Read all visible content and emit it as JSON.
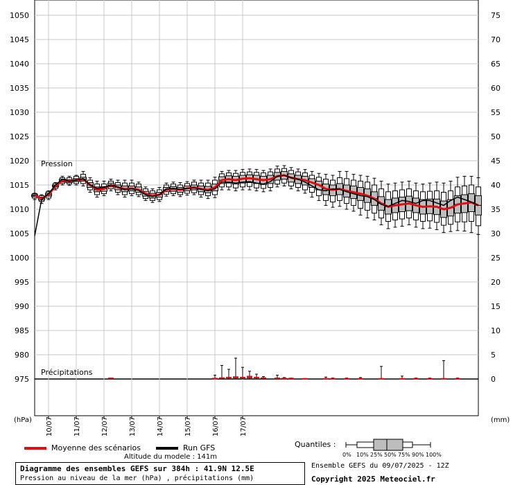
{
  "chart_data": {
    "type": "boxplot-line",
    "y_left": {
      "label": "(hPa)",
      "ticks": [
        975,
        980,
        985,
        990,
        995,
        1000,
        1005,
        1010,
        1015,
        1020,
        1025,
        1030,
        1035,
        1040,
        1045,
        1050
      ],
      "range": [
        968,
        1053
      ]
    },
    "y_right": {
      "label": "(mm)",
      "ticks": [
        0,
        5,
        10,
        15,
        20,
        25,
        30,
        35,
        40,
        45,
        50,
        55,
        60,
        65,
        70,
        75
      ]
    },
    "x": {
      "ticks": [
        "10/07",
        "11/07",
        "12/07",
        "13/07",
        "14/07",
        "15/07",
        "16/07",
        "17/07"
      ],
      "range_hours": [
        0,
        384
      ]
    },
    "panel_labels": {
      "pressure": "Pression",
      "precip": "Précipitations"
    },
    "series": [
      {
        "name": "Moyenne des scénarios",
        "color": "#e01010"
      },
      {
        "name": "Run GFS",
        "color": "#000000"
      }
    ],
    "pressure_boxes": [
      {
        "h": 0,
        "mean": 1012.8,
        "med": 1012.8,
        "q25": 1012.6,
        "q75": 1013.0,
        "p10": 1012.3,
        "p90": 1013.2,
        "min": 1012.0,
        "max": 1013.3
      },
      {
        "h": 6,
        "mean": 1012.2,
        "med": 1012.2,
        "q25": 1011.9,
        "q75": 1012.5,
        "p10": 1011.6,
        "p90": 1012.8,
        "min": 1011.2,
        "max": 1013.0
      },
      {
        "h": 12,
        "mean": 1013.0,
        "med": 1013.0,
        "q25": 1012.7,
        "q75": 1013.3,
        "p10": 1012.3,
        "p90": 1013.6,
        "min": 1012.0,
        "max": 1013.8
      },
      {
        "h": 18,
        "mean": 1014.8,
        "med": 1014.8,
        "q25": 1014.6,
        "q75": 1015.0,
        "p10": 1014.3,
        "p90": 1015.3,
        "min": 1014.0,
        "max": 1015.5
      },
      {
        "h": 24,
        "mean": 1015.9,
        "med": 1015.9,
        "q25": 1015.6,
        "q75": 1016.2,
        "p10": 1015.3,
        "p90": 1016.5,
        "min": 1015.0,
        "max": 1016.8
      },
      {
        "h": 30,
        "mean": 1015.8,
        "med": 1015.8,
        "q25": 1015.5,
        "q75": 1016.1,
        "p10": 1015.2,
        "p90": 1016.5,
        "min": 1014.9,
        "max": 1016.8
      },
      {
        "h": 36,
        "mean": 1016.0,
        "med": 1016.0,
        "q25": 1015.7,
        "q75": 1016.3,
        "p10": 1015.3,
        "p90": 1016.8,
        "min": 1015.0,
        "max": 1017.0
      },
      {
        "h": 42,
        "mean": 1016.2,
        "med": 1016.2,
        "q25": 1015.8,
        "q75": 1016.6,
        "p10": 1015.3,
        "p90": 1017.2,
        "min": 1014.8,
        "max": 1017.8
      },
      {
        "h": 48,
        "mean": 1015.0,
        "med": 1015.0,
        "q25": 1014.5,
        "q75": 1015.5,
        "p10": 1014.0,
        "p90": 1016.0,
        "min": 1013.5,
        "max": 1016.5
      },
      {
        "h": 54,
        "mean": 1014.0,
        "med": 1014.0,
        "q25": 1013.6,
        "q75": 1014.6,
        "p10": 1013.0,
        "p90": 1015.2,
        "min": 1012.5,
        "max": 1015.8
      },
      {
        "h": 60,
        "mean": 1014.2,
        "med": 1014.2,
        "q25": 1013.7,
        "q75": 1014.7,
        "p10": 1013.2,
        "p90": 1015.2,
        "min": 1012.8,
        "max": 1015.8
      },
      {
        "h": 66,
        "mean": 1015.0,
        "med": 1015.0,
        "q25": 1014.6,
        "q75": 1015.4,
        "p10": 1014.2,
        "p90": 1015.8,
        "min": 1013.8,
        "max": 1016.2
      },
      {
        "h": 72,
        "mean": 1014.5,
        "med": 1014.5,
        "q25": 1014.0,
        "q75": 1015.0,
        "p10": 1013.5,
        "p90": 1015.5,
        "min": 1013.0,
        "max": 1016.0
      },
      {
        "h": 78,
        "mean": 1014.2,
        "med": 1014.2,
        "q25": 1013.6,
        "q75": 1014.8,
        "p10": 1013.0,
        "p90": 1015.4,
        "min": 1012.5,
        "max": 1016.0
      },
      {
        "h": 84,
        "mean": 1014.3,
        "med": 1014.3,
        "q25": 1013.8,
        "q75": 1014.8,
        "p10": 1013.2,
        "p90": 1015.4,
        "min": 1012.8,
        "max": 1016.0
      },
      {
        "h": 90,
        "mean": 1014.0,
        "med": 1014.0,
        "q25": 1013.5,
        "q75": 1014.6,
        "p10": 1013.0,
        "p90": 1015.2,
        "min": 1012.6,
        "max": 1015.6
      },
      {
        "h": 96,
        "mean": 1013.2,
        "med": 1013.2,
        "q25": 1012.7,
        "q75": 1013.7,
        "p10": 1012.2,
        "p90": 1014.2,
        "min": 1011.8,
        "max": 1014.6
      },
      {
        "h": 102,
        "mean": 1012.8,
        "med": 1012.8,
        "q25": 1012.3,
        "q75": 1013.3,
        "p10": 1011.8,
        "p90": 1013.8,
        "min": 1011.4,
        "max": 1014.2
      },
      {
        "h": 108,
        "mean": 1013.0,
        "med": 1013.0,
        "q25": 1012.5,
        "q75": 1013.5,
        "p10": 1012.0,
        "p90": 1014.0,
        "min": 1011.6,
        "max": 1014.5
      },
      {
        "h": 114,
        "mean": 1014.0,
        "med": 1014.0,
        "q25": 1013.6,
        "q75": 1014.5,
        "p10": 1013.1,
        "p90": 1015.0,
        "min": 1012.7,
        "max": 1015.4
      },
      {
        "h": 120,
        "mean": 1014.2,
        "med": 1014.2,
        "q25": 1013.7,
        "q75": 1014.7,
        "p10": 1013.2,
        "p90": 1015.2,
        "min": 1012.8,
        "max": 1015.6
      },
      {
        "h": 126,
        "mean": 1014.0,
        "med": 1014.0,
        "q25": 1013.5,
        "q75": 1014.5,
        "p10": 1013.0,
        "p90": 1015.0,
        "min": 1012.6,
        "max": 1015.5
      },
      {
        "h": 132,
        "mean": 1014.3,
        "med": 1014.3,
        "q25": 1013.8,
        "q75": 1014.8,
        "p10": 1013.3,
        "p90": 1015.3,
        "min": 1012.9,
        "max": 1015.7
      },
      {
        "h": 138,
        "mean": 1014.5,
        "med": 1014.5,
        "q25": 1014.0,
        "q75": 1015.0,
        "p10": 1013.4,
        "p90": 1015.6,
        "min": 1013.0,
        "max": 1016.0
      },
      {
        "h": 144,
        "mean": 1014.2,
        "med": 1014.2,
        "q25": 1013.6,
        "q75": 1014.8,
        "p10": 1013.0,
        "p90": 1015.4,
        "min": 1012.5,
        "max": 1016.0
      },
      {
        "h": 150,
        "mean": 1014.0,
        "med": 1014.0,
        "q25": 1013.4,
        "q75": 1014.7,
        "p10": 1012.8,
        "p90": 1015.4,
        "min": 1012.2,
        "max": 1016.0
      },
      {
        "h": 156,
        "mean": 1014.5,
        "med": 1014.5,
        "q25": 1013.8,
        "q75": 1015.2,
        "p10": 1013.0,
        "p90": 1016.0,
        "min": 1012.4,
        "max": 1016.6
      },
      {
        "h": 162,
        "mean": 1016.0,
        "med": 1016.0,
        "q25": 1015.3,
        "q75": 1016.7,
        "p10": 1014.6,
        "p90": 1017.3,
        "min": 1014.0,
        "max": 1017.8
      },
      {
        "h": 168,
        "mean": 1016.2,
        "med": 1016.2,
        "q25": 1015.4,
        "q75": 1016.9,
        "p10": 1014.6,
        "p90": 1017.5,
        "min": 1014.0,
        "max": 1018.0
      },
      {
        "h": 174,
        "mean": 1016.0,
        "med": 1016.0,
        "q25": 1015.2,
        "q75": 1016.8,
        "p10": 1014.4,
        "p90": 1017.4,
        "min": 1013.8,
        "max": 1018.0
      },
      {
        "h": 180,
        "mean": 1016.3,
        "med": 1016.3,
        "q25": 1015.4,
        "q75": 1017.0,
        "p10": 1014.6,
        "p90": 1017.6,
        "min": 1014.0,
        "max": 1018.2
      },
      {
        "h": 186,
        "mean": 1016.4,
        "med": 1016.4,
        "q25": 1015.5,
        "q75": 1017.1,
        "p10": 1014.7,
        "p90": 1017.7,
        "min": 1014.0,
        "max": 1018.3
      },
      {
        "h": 192,
        "mean": 1016.2,
        "med": 1016.2,
        "q25": 1015.3,
        "q75": 1017.0,
        "p10": 1014.4,
        "p90": 1017.6,
        "min": 1013.8,
        "max": 1018.2
      },
      {
        "h": 198,
        "mean": 1016.0,
        "med": 1016.0,
        "q25": 1015.1,
        "q75": 1016.8,
        "p10": 1014.3,
        "p90": 1017.5,
        "min": 1013.6,
        "max": 1018.0
      },
      {
        "h": 204,
        "mean": 1016.2,
        "med": 1016.2,
        "q25": 1015.3,
        "q75": 1017.0,
        "p10": 1014.5,
        "p90": 1017.7,
        "min": 1013.8,
        "max": 1018.3
      },
      {
        "h": 210,
        "mean": 1016.8,
        "med": 1016.8,
        "q25": 1016.0,
        "q75": 1017.6,
        "p10": 1015.2,
        "p90": 1018.3,
        "min": 1014.6,
        "max": 1018.9
      },
      {
        "h": 216,
        "mean": 1017.0,
        "med": 1017.0,
        "q25": 1016.2,
        "q75": 1017.8,
        "p10": 1015.4,
        "p90": 1018.4,
        "min": 1014.8,
        "max": 1019.0
      },
      {
        "h": 222,
        "mean": 1016.5,
        "med": 1016.5,
        "q25": 1015.6,
        "q75": 1017.3,
        "p10": 1014.8,
        "p90": 1018.0,
        "min": 1014.2,
        "max": 1018.6
      },
      {
        "h": 228,
        "mean": 1016.2,
        "med": 1016.2,
        "q25": 1015.3,
        "q75": 1017.0,
        "p10": 1014.5,
        "p90": 1017.7,
        "min": 1013.8,
        "max": 1018.3
      },
      {
        "h": 234,
        "mean": 1016.0,
        "med": 1016.0,
        "q25": 1015.0,
        "q75": 1016.8,
        "p10": 1014.0,
        "p90": 1017.5,
        "min": 1013.3,
        "max": 1018.2
      },
      {
        "h": 240,
        "mean": 1015.5,
        "med": 1015.5,
        "q25": 1014.5,
        "q75": 1016.3,
        "p10": 1013.5,
        "p90": 1017.0,
        "min": 1012.5,
        "max": 1017.8
      },
      {
        "h": 246,
        "mean": 1015.0,
        "med": 1015.0,
        "q25": 1014.0,
        "q75": 1015.8,
        "p10": 1012.8,
        "p90": 1016.6,
        "min": 1011.8,
        "max": 1017.4
      },
      {
        "h": 252,
        "mean": 1014.2,
        "med": 1014.2,
        "q25": 1013.0,
        "q75": 1015.2,
        "p10": 1011.8,
        "p90": 1016.2,
        "min": 1010.8,
        "max": 1017.2
      },
      {
        "h": 258,
        "mean": 1014.0,
        "med": 1014.0,
        "q25": 1012.8,
        "q75": 1015.0,
        "p10": 1011.5,
        "p90": 1016.0,
        "min": 1010.4,
        "max": 1017.0
      },
      {
        "h": 264,
        "mean": 1014.2,
        "med": 1014.2,
        "q25": 1013.0,
        "q75": 1015.3,
        "p10": 1011.8,
        "p90": 1016.5,
        "min": 1010.6,
        "max": 1017.8
      },
      {
        "h": 270,
        "mean": 1013.8,
        "med": 1013.8,
        "q25": 1012.5,
        "q75": 1015.0,
        "p10": 1011.2,
        "p90": 1016.3,
        "min": 1010.0,
        "max": 1017.8
      },
      {
        "h": 276,
        "mean": 1013.5,
        "med": 1013.5,
        "q25": 1012.2,
        "q75": 1014.8,
        "p10": 1010.8,
        "p90": 1016.0,
        "min": 1009.6,
        "max": 1017.2
      },
      {
        "h": 282,
        "mean": 1013.2,
        "med": 1013.2,
        "q25": 1011.8,
        "q75": 1014.5,
        "p10": 1010.2,
        "p90": 1015.8,
        "min": 1008.8,
        "max": 1017.0
      },
      {
        "h": 288,
        "mean": 1012.8,
        "med": 1012.8,
        "q25": 1011.4,
        "q75": 1014.2,
        "p10": 1009.8,
        "p90": 1015.6,
        "min": 1008.2,
        "max": 1016.8
      },
      {
        "h": 294,
        "mean": 1012.2,
        "med": 1012.2,
        "q25": 1010.8,
        "q75": 1013.6,
        "p10": 1009.2,
        "p90": 1015.0,
        "min": 1007.8,
        "max": 1016.4
      },
      {
        "h": 300,
        "mean": 1011.2,
        "med": 1011.2,
        "q25": 1009.8,
        "q75": 1012.6,
        "p10": 1008.2,
        "p90": 1014.2,
        "min": 1006.8,
        "max": 1015.8
      },
      {
        "h": 306,
        "mean": 1010.5,
        "med": 1010.5,
        "q25": 1009.0,
        "q75": 1012.0,
        "p10": 1007.5,
        "p90": 1013.6,
        "min": 1006.0,
        "max": 1015.2
      },
      {
        "h": 312,
        "mean": 1010.8,
        "med": 1010.8,
        "q25": 1009.3,
        "q75": 1012.3,
        "p10": 1007.8,
        "p90": 1013.8,
        "min": 1006.3,
        "max": 1015.4
      },
      {
        "h": 318,
        "mean": 1011.0,
        "med": 1011.0,
        "q25": 1009.5,
        "q75": 1012.5,
        "p10": 1008.0,
        "p90": 1014.0,
        "min": 1006.5,
        "max": 1015.6
      },
      {
        "h": 324,
        "mean": 1011.2,
        "med": 1011.2,
        "q25": 1009.7,
        "q75": 1012.7,
        "p10": 1008.2,
        "p90": 1014.2,
        "min": 1006.8,
        "max": 1015.8
      },
      {
        "h": 330,
        "mean": 1010.8,
        "med": 1010.8,
        "q25": 1009.3,
        "q75": 1012.3,
        "p10": 1007.8,
        "p90": 1013.8,
        "min": 1006.3,
        "max": 1015.4
      },
      {
        "h": 336,
        "mean": 1010.5,
        "med": 1010.5,
        "q25": 1009.0,
        "q75": 1012.0,
        "p10": 1007.5,
        "p90": 1013.6,
        "min": 1006.0,
        "max": 1015.2
      },
      {
        "h": 342,
        "mean": 1010.6,
        "med": 1010.6,
        "q25": 1009.1,
        "q75": 1012.1,
        "p10": 1007.6,
        "p90": 1013.7,
        "min": 1006.1,
        "max": 1015.4
      },
      {
        "h": 348,
        "mean": 1010.5,
        "med": 1010.5,
        "q25": 1008.9,
        "q75": 1012.1,
        "p10": 1007.3,
        "p90": 1013.8,
        "min": 1005.8,
        "max": 1015.6
      },
      {
        "h": 354,
        "mean": 1010.0,
        "med": 1010.0,
        "q25": 1008.3,
        "q75": 1011.7,
        "p10": 1006.7,
        "p90": 1013.5,
        "min": 1005.2,
        "max": 1015.4
      },
      {
        "h": 360,
        "mean": 1010.3,
        "med": 1010.3,
        "q25": 1008.6,
        "q75": 1012.0,
        "p10": 1006.9,
        "p90": 1013.8,
        "min": 1005.4,
        "max": 1015.8
      },
      {
        "h": 366,
        "mean": 1011.0,
        "med": 1011.0,
        "q25": 1009.2,
        "q75": 1012.8,
        "p10": 1007.4,
        "p90": 1014.6,
        "min": 1005.6,
        "max": 1016.6
      },
      {
        "h": 372,
        "mean": 1011.2,
        "med": 1011.2,
        "q25": 1009.3,
        "q75": 1013.0,
        "p10": 1007.4,
        "p90": 1014.8,
        "min": 1005.5,
        "max": 1016.8
      },
      {
        "h": 378,
        "mean": 1011.4,
        "med": 1011.4,
        "q25": 1009.5,
        "q75": 1013.2,
        "p10": 1007.5,
        "p90": 1015.0,
        "min": 1005.2,
        "max": 1016.8
      },
      {
        "h": 384,
        "mean": 1010.8,
        "med": 1010.8,
        "q25": 1008.8,
        "q75": 1012.8,
        "p10": 1006.6,
        "p90": 1014.6,
        "min": 1004.8,
        "max": 1016.5
      }
    ],
    "gfs_run": {
      "h": [
        0,
        6,
        12,
        18,
        24,
        30,
        36,
        42,
        48,
        54,
        60,
        66,
        72,
        78,
        84,
        90,
        96,
        102,
        108,
        114,
        120,
        126,
        132,
        138,
        144,
        150,
        156,
        162,
        168,
        174,
        180,
        186,
        192,
        198,
        204,
        210,
        216,
        222,
        228,
        234,
        240,
        246,
        252,
        258,
        264,
        270,
        276,
        282,
        288,
        294,
        300,
        306,
        312,
        318,
        324,
        330,
        336,
        342,
        348,
        354,
        360,
        366,
        372,
        378,
        384
      ],
      "p": [
        1004.5,
        1012.0,
        1013.2,
        1015.0,
        1016.2,
        1015.7,
        1016.0,
        1016.3,
        1015.0,
        1014.3,
        1014.5,
        1015.0,
        1014.6,
        1014.0,
        1014.2,
        1013.9,
        1013.0,
        1012.6,
        1013.0,
        1014.2,
        1014.3,
        1014.1,
        1014.3,
        1014.4,
        1014.1,
        1013.8,
        1014.2,
        1015.6,
        1015.6,
        1015.4,
        1015.6,
        1015.7,
        1015.4,
        1015.2,
        1015.7,
        1016.8,
        1017.0,
        1016.5,
        1016.2,
        1015.6,
        1014.8,
        1014.0,
        1013.8,
        1014.2,
        1014.1,
        1013.6,
        1013.2,
        1012.8,
        1012.6,
        1012.0,
        1011.0,
        1010.6,
        1011.2,
        1011.8,
        1011.6,
        1011.2,
        1011.8,
        1011.8,
        1011.3,
        1010.8,
        1011.8,
        1012.5,
        1012.0,
        1011.5,
        1010.8
      ]
    },
    "precip": [
      {
        "h": 66,
        "mean": 0.15,
        "max": 0.2
      },
      {
        "h": 156,
        "mean": 0.1,
        "max": 0.8
      },
      {
        "h": 162,
        "mean": 0.2,
        "max": 2.8
      },
      {
        "h": 168,
        "mean": 0.3,
        "max": 2.0
      },
      {
        "h": 174,
        "mean": 0.4,
        "max": 4.3
      },
      {
        "h": 180,
        "mean": 0.3,
        "max": 2.4
      },
      {
        "h": 186,
        "mean": 0.5,
        "max": 1.6
      },
      {
        "h": 192,
        "mean": 0.3,
        "max": 1.0
      },
      {
        "h": 198,
        "mean": 0.2,
        "max": 0.5
      },
      {
        "h": 210,
        "mean": 0.15,
        "max": 0.8
      },
      {
        "h": 216,
        "mean": 0.1,
        "max": 0.3
      },
      {
        "h": 222,
        "mean": 0.1,
        "max": 0.2
      },
      {
        "h": 234,
        "mean": 0.05,
        "max": 0.1
      },
      {
        "h": 252,
        "mean": 0.05,
        "max": 0.4
      },
      {
        "h": 258,
        "mean": 0.05,
        "max": 0.2
      },
      {
        "h": 270,
        "mean": 0.05,
        "max": 0.2
      },
      {
        "h": 282,
        "mean": 0.05,
        "max": 0.3
      },
      {
        "h": 300,
        "mean": 0.05,
        "max": 2.6
      },
      {
        "h": 318,
        "mean": 0.05,
        "max": 0.6
      },
      {
        "h": 330,
        "mean": 0.05,
        "max": 0.2
      },
      {
        "h": 342,
        "mean": 0.05,
        "max": 0.2
      },
      {
        "h": 354,
        "mean": 0.05,
        "max": 3.8
      },
      {
        "h": 366,
        "mean": 0.05,
        "max": 0.2
      }
    ]
  },
  "legend": {
    "mean_label": "Moyenne des scénarios",
    "gfs_label": "Run GFS",
    "quantiles_label": "Quantiles :",
    "quantile_ticks": [
      "0%",
      "10%",
      "25%",
      "50%",
      "75%",
      "90%",
      "100%"
    ],
    "mean_color": "#e01010",
    "gfs_color": "#000000"
  },
  "footer": {
    "altitude": "Altitude du modele : 141m",
    "title": "Diagramme des ensembles GEFS sur 384h : 41.9N 12.5E",
    "subtitle": "Pression au niveau de la mer (hPa) , précipitations (mm)",
    "ensemble": "Ensemble GEFS du 09/07/2025 - 12Z",
    "copyright": "Copyright 2025 Meteociel.fr"
  }
}
